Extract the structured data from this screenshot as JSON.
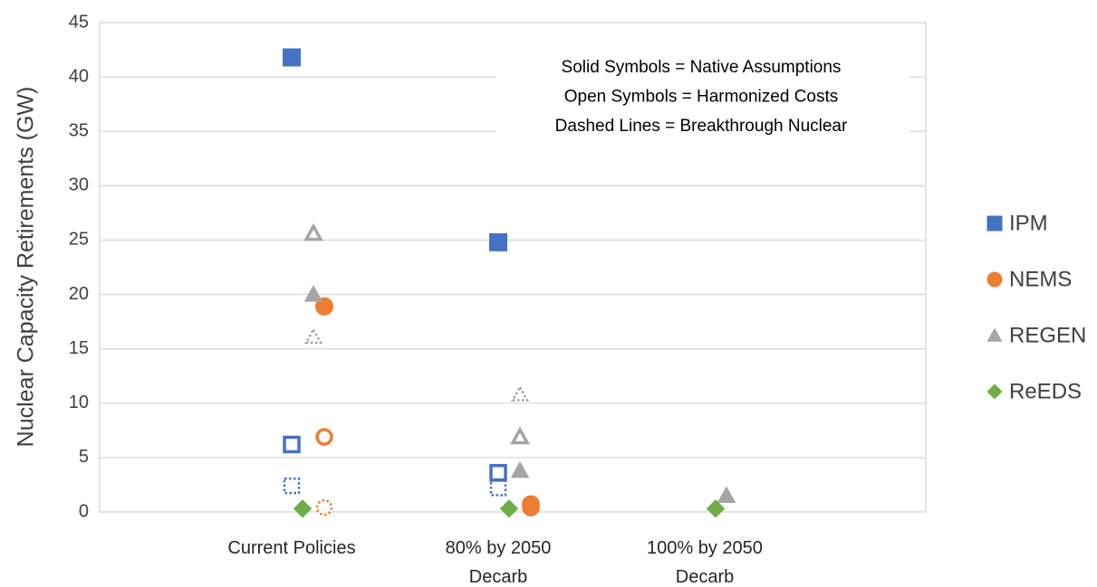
{
  "chart_data": {
    "type": "categorical-scatter",
    "y_label": "Nuclear Capacity Retirements (GW)",
    "categories": [
      "Current Policies",
      "80% by 2050 Decarb",
      "100% by 2050 Decarb"
    ],
    "ylim": [
      0,
      45
    ],
    "yticks": [
      0,
      5,
      10,
      15,
      20,
      25,
      30,
      35,
      40,
      45
    ],
    "grid": true,
    "legend": "right",
    "annotation": [
      "Solid Symbols = Native Assumptions",
      "Open Symbols = Harmonized Costs",
      "Dashed Lines = Breakthrough Nuclear"
    ],
    "series": [
      {
        "name": "IPM",
        "color": "#4472c4",
        "marker": "square",
        "solid": [
          41.8,
          24.8,
          null
        ],
        "open": [
          6.2,
          3.6,
          null
        ],
        "dashed": [
          2.4,
          2.2,
          null
        ]
      },
      {
        "name": "NEMS",
        "color": "#ed7d31",
        "marker": "circle",
        "solid": [
          18.9,
          0.7,
          null
        ],
        "open": [
          6.9,
          0.4,
          null
        ],
        "dashed": [
          0.4,
          null,
          null
        ]
      },
      {
        "name": "REGEN",
        "color": "#a5a5a5",
        "marker": "triangle",
        "solid": [
          20.0,
          3.8,
          1.5
        ],
        "open": [
          25.6,
          6.9,
          null
        ],
        "dashed": [
          16.1,
          10.8,
          null
        ]
      },
      {
        "name": "ReEDS",
        "color": "#70ad47",
        "marker": "diamond",
        "solid": [
          0.3,
          0.3,
          0.3
        ],
        "open": [
          null,
          null,
          null
        ],
        "dashed": [
          null,
          null,
          null
        ]
      }
    ]
  }
}
